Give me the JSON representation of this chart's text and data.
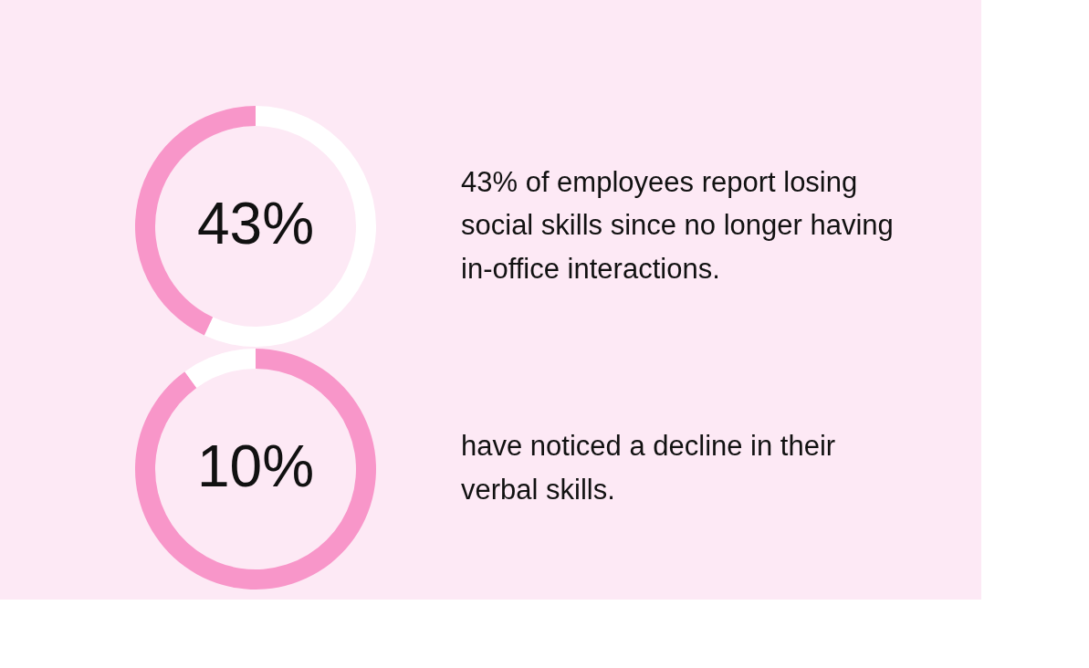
{
  "chart_data": [
    {
      "type": "donut",
      "categories": [
        null,
        null
      ],
      "values": [
        57,
        43
      ],
      "colors": [
        "#ffffff",
        "#f896c9"
      ],
      "value_labels": [
        null,
        "43%"
      ],
      "annotations": [
        "43% of employees report losing social skills since no longer having in-office interactions."
      ]
    },
    {
      "type": "donut",
      "categories": [
        null,
        null
      ],
      "values": [
        90,
        10
      ],
      "colors": [
        "#f896c9",
        "#ffffff"
      ],
      "value_labels": [
        null,
        "10%"
      ],
      "annotations": [
        "have noticed a decline in their verbal skills."
      ]
    }
  ]
}
